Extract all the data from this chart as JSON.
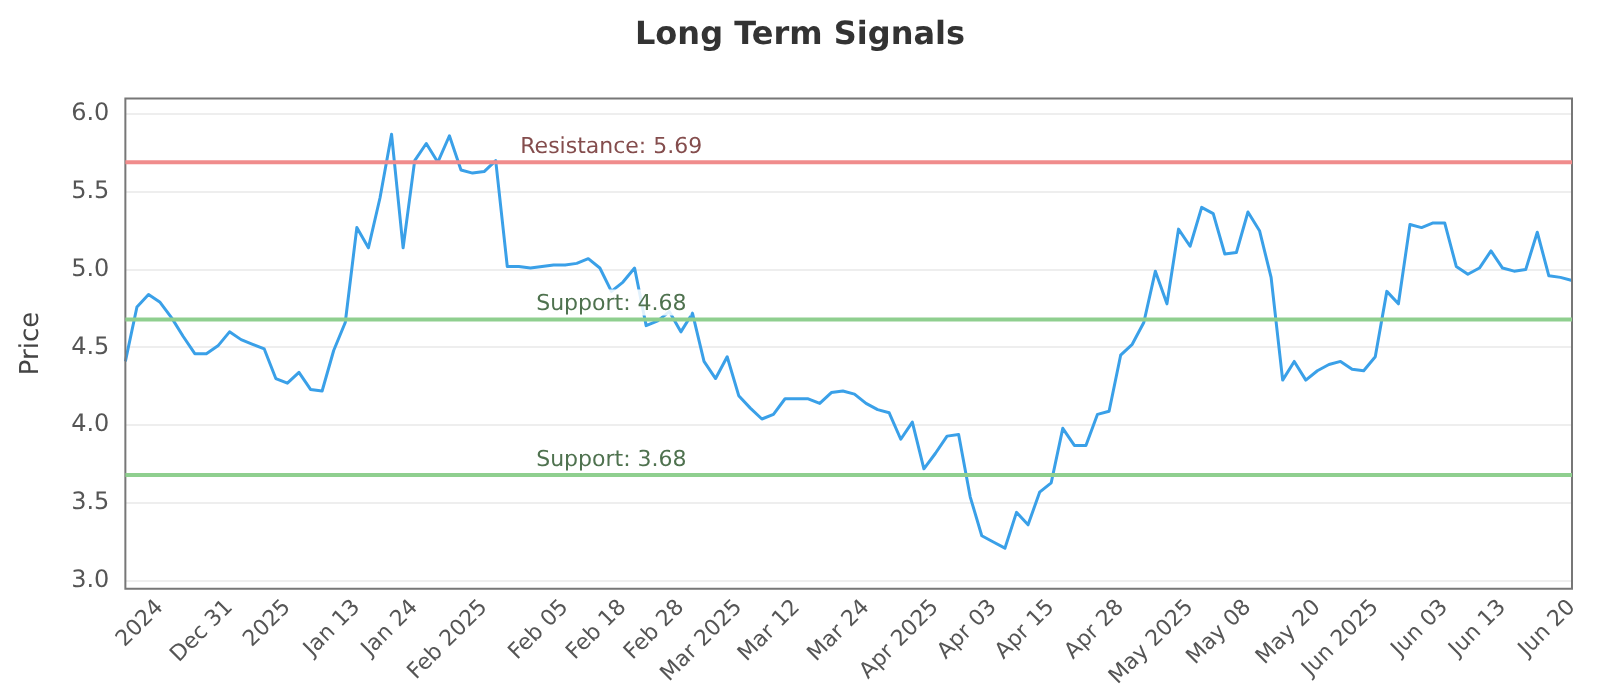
{
  "chart_data": {
    "type": "line",
    "title": "Long Term Signals",
    "ylabel": "Price",
    "categories": [
      null,
      null,
      null,
      "2024",
      null,
      null,
      null,
      null,
      null,
      "Dec 31",
      null,
      null,
      null,
      null,
      "2025",
      null,
      null,
      null,
      null,
      null,
      "Jan 13",
      null,
      null,
      null,
      null,
      "Jan 24",
      null,
      null,
      null,
      null,
      null,
      "Feb 2025",
      null,
      null,
      null,
      null,
      null,
      null,
      "Feb 05",
      null,
      null,
      null,
      null,
      "Feb 18",
      null,
      null,
      null,
      null,
      "Feb 28",
      null,
      null,
      null,
      null,
      "Mar 2025",
      null,
      null,
      null,
      null,
      "Mar 12",
      null,
      null,
      null,
      null,
      null,
      "Mar 24",
      null,
      null,
      null,
      null,
      null,
      "Apr 2025",
      null,
      null,
      null,
      null,
      "Apr 03",
      null,
      null,
      null,
      null,
      "Apr 15",
      null,
      null,
      null,
      null,
      null,
      "Apr 28",
      null,
      null,
      null,
      null,
      null,
      "May 2025",
      null,
      null,
      null,
      null,
      "May 08",
      null,
      null,
      null,
      null,
      null,
      "May 20",
      null,
      null,
      null,
      null,
      "Jun 2025",
      null,
      null,
      null,
      null,
      null,
      "Jun 03",
      null,
      null,
      null,
      null,
      "Jun 13",
      null,
      null,
      null,
      null,
      null,
      "Jun 20"
    ],
    "series": [
      {
        "color": "#3aa0e8",
        "values": [
          4.41,
          4.76,
          4.84,
          4.79,
          4.69,
          4.57,
          4.46,
          4.46,
          4.51,
          4.6,
          4.55,
          4.52,
          4.49,
          4.3,
          4.27,
          4.34,
          4.23,
          4.22,
          4.48,
          4.66,
          5.27,
          5.14,
          5.46,
          5.87,
          5.14,
          5.7,
          5.81,
          5.69,
          5.86,
          5.64,
          5.62,
          5.63,
          5.7,
          5.02,
          5.02,
          5.01,
          5.02,
          5.03,
          5.03,
          5.04,
          5.07,
          5.01,
          4.86,
          4.92,
          5.01,
          4.64,
          4.67,
          4.73,
          4.6,
          4.72,
          4.41,
          4.3,
          4.44,
          4.19,
          4.11,
          4.04,
          4.07,
          4.17,
          4.17,
          4.17,
          4.14,
          4.21,
          4.22,
          4.2,
          4.14,
          4.1,
          4.08,
          3.91,
          4.02,
          3.72,
          3.82,
          3.93,
          3.94,
          3.54,
          3.29,
          3.25,
          3.21,
          3.44,
          3.36,
          3.57,
          3.63,
          3.98,
          3.87,
          3.87,
          4.07,
          4.09,
          4.45,
          4.52,
          4.66,
          4.99,
          4.78,
          5.26,
          5.15,
          5.4,
          5.36,
          5.1,
          5.11,
          5.37,
          5.25,
          4.95,
          4.29,
          4.41,
          4.29,
          4.35,
          4.39,
          4.41,
          4.36,
          4.35,
          4.44,
          4.86,
          4.78,
          5.29,
          5.27,
          5.3,
          5.3,
          5.02,
          4.97,
          5.01,
          5.12,
          5.01,
          4.99,
          5.0,
          5.24,
          4.96,
          4.95,
          4.93
        ]
      }
    ],
    "ylim": [
      2.95,
      6.1
    ],
    "yticks": [
      {
        "value": 3,
        "label": "3.0"
      },
      {
        "value": 3.5,
        "label": "3.5"
      },
      {
        "value": 4,
        "label": "4.0"
      },
      {
        "value": 4.5,
        "label": "4.5"
      },
      {
        "value": 5,
        "label": "5.0"
      },
      {
        "value": 5.5,
        "label": "5.5"
      },
      {
        "value": 6,
        "label": "6.0"
      }
    ],
    "grid": "y",
    "legend": false,
    "marker": "none",
    "line_style": "solid",
    "ref_lines": [
      {
        "axis": "y",
        "value": 5.69,
        "label": "Resistance: 5.69",
        "color": "#f08c8c"
      },
      {
        "axis": "y",
        "value": 4.68,
        "label": "Support: 4.68",
        "color": "#8fcf8f"
      },
      {
        "axis": "y",
        "value": 3.68,
        "label": "Support: 3.68",
        "color": "#8fcf8f"
      }
    ]
  }
}
